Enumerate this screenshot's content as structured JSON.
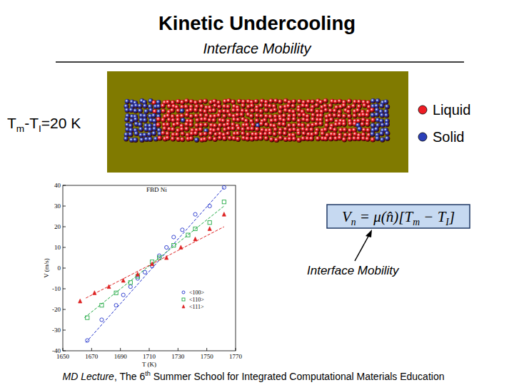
{
  "slide": {
    "title": "Kinetic Undercooling",
    "subtitle": "Interface Mobility",
    "undercooling": [
      {
        "text": "T",
        "sub": false
      },
      {
        "text": "m",
        "sub": true
      },
      {
        "text": "-T",
        "sub": false
      },
      {
        "text": "I",
        "sub": true
      },
      {
        "text": "=20 K",
        "sub": false
      }
    ],
    "phase_legend": [
      {
        "name": "Liquid",
        "color": "#ee1c24"
      },
      {
        "name": "Solid",
        "color": "#2b3fb8"
      }
    ],
    "equation": [
      {
        "text": "V",
        "sub": false
      },
      {
        "text": "n",
        "sub": true
      },
      {
        "text": " = μ(",
        "sub": false
      },
      {
        "text": "n̂",
        "sub": false
      },
      {
        "text": ")[T",
        "sub": false
      },
      {
        "text": "m",
        "sub": true
      },
      {
        "text": " − T",
        "sub": false
      },
      {
        "text": "I",
        "sub": true
      },
      {
        "text": "]",
        "sub": false
      }
    ],
    "annotation": "Interface Mobility",
    "footer": [
      {
        "text": "MD Lecture",
        "style": "italic"
      },
      {
        "text": ", The 6",
        "style": "normal"
      },
      {
        "text": "th",
        "style": "superscript"
      },
      {
        "text": " Summer School for Integrated Computational Materials Education",
        "style": "normal"
      }
    ]
  },
  "chart_data": {
    "type": "scatter",
    "title": "FBD Ni",
    "x_label": "T (K)",
    "y_label": "V (m/s)",
    "xlim": [
      1650,
      1770
    ],
    "xticks": [
      1650,
      1670,
      1690,
      1710,
      1730,
      1750,
      1770
    ],
    "ylim": [
      -40,
      40
    ],
    "yticks": [
      -40,
      -30,
      -20,
      -10,
      0,
      10,
      20,
      30,
      40
    ],
    "grid": false,
    "legend": "bottom-right",
    "series": [
      {
        "name": "<100>",
        "color": "#2233cc",
        "marker": "circle",
        "line_style": "dashed",
        "x": [
          1667,
          1677,
          1687,
          1692,
          1697,
          1702,
          1707,
          1712,
          1717,
          1722,
          1727,
          1733,
          1742,
          1752,
          1762
        ],
        "values": [
          -35,
          -25,
          -18,
          -13,
          -9,
          -5,
          -2,
          1,
          6,
          10,
          15,
          18.5,
          26,
          30,
          39
        ],
        "fit_x": [
          1666,
          1762
        ],
        "fit_values": [
          -36,
          39
        ]
      },
      {
        "name": "<110>",
        "color": "#22aa44",
        "marker": "square",
        "line_style": "dashed",
        "x": [
          1667,
          1677,
          1687,
          1697,
          1702,
          1712,
          1717,
          1727,
          1737,
          1742,
          1752,
          1762
        ],
        "values": [
          -24,
          -18,
          -12,
          -7,
          -4,
          3,
          5,
          11,
          16,
          19,
          22,
          32
        ],
        "fit_x": [
          1665,
          1762
        ],
        "fit_values": [
          -24,
          30
        ]
      },
      {
        "name": "<111>",
        "color": "#dd2222",
        "marker": "triangle",
        "line_style": "dashed",
        "x": [
          1662,
          1672,
          1682,
          1692,
          1702,
          1712,
          1722,
          1732,
          1742,
          1752,
          1762
        ],
        "values": [
          -16,
          -12,
          -9,
          -6,
          -3,
          2,
          5,
          10,
          14,
          19,
          26
        ],
        "fit_x": [
          1666,
          1762
        ],
        "fit_values": [
          -14.5,
          20
        ]
      }
    ]
  }
}
